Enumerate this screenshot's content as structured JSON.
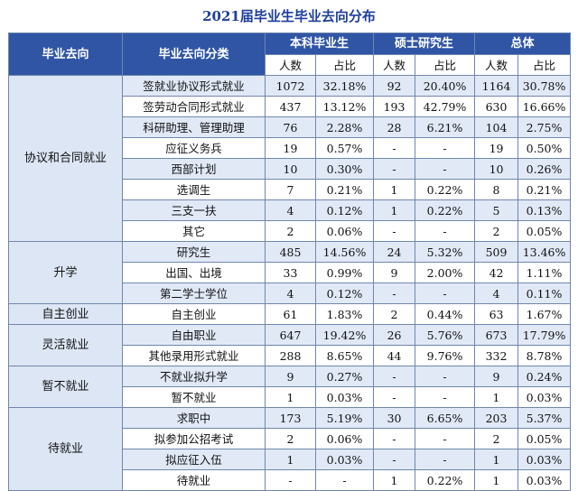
{
  "title": "2021届毕业生毕业去向分布",
  "headers": {
    "main": "毕业去向",
    "sub": "毕业去向分类",
    "groups": [
      "本科毕业生",
      "硕士研究生",
      "总体"
    ],
    "count": "人数",
    "ratio": "占比"
  },
  "groups": [
    {
      "name": "协议和合同就业",
      "rows": [
        {
          "cat": "签就业协议形式就业",
          "v": [
            "1072",
            "32.18%",
            "92",
            "20.40%",
            "1164",
            "30.78%"
          ]
        },
        {
          "cat": "签劳动合同形式就业",
          "v": [
            "437",
            "13.12%",
            "193",
            "42.79%",
            "630",
            "16.66%"
          ]
        },
        {
          "cat": "科研助理、管理助理",
          "v": [
            "76",
            "2.28%",
            "28",
            "6.21%",
            "104",
            "2.75%"
          ]
        },
        {
          "cat": "应征义务兵",
          "v": [
            "19",
            "0.57%",
            "-",
            "-",
            "19",
            "0.50%"
          ]
        },
        {
          "cat": "西部计划",
          "v": [
            "10",
            "0.30%",
            "-",
            "-",
            "10",
            "0.26%"
          ]
        },
        {
          "cat": "选调生",
          "v": [
            "7",
            "0.21%",
            "1",
            "0.22%",
            "8",
            "0.21%"
          ]
        },
        {
          "cat": "三支一扶",
          "v": [
            "4",
            "0.12%",
            "1",
            "0.22%",
            "5",
            "0.13%"
          ]
        },
        {
          "cat": "其它",
          "v": [
            "2",
            "0.06%",
            "-",
            "-",
            "2",
            "0.05%"
          ]
        }
      ]
    },
    {
      "name": "升学",
      "rows": [
        {
          "cat": "研究生",
          "v": [
            "485",
            "14.56%",
            "24",
            "5.32%",
            "509",
            "13.46%"
          ]
        },
        {
          "cat": "出国、出境",
          "v": [
            "33",
            "0.99%",
            "9",
            "2.00%",
            "42",
            "1.11%"
          ]
        },
        {
          "cat": "第二学士学位",
          "v": [
            "4",
            "0.12%",
            "-",
            "-",
            "4",
            "0.11%"
          ]
        }
      ]
    },
    {
      "name": "自主创业",
      "rows": [
        {
          "cat": "自主创业",
          "v": [
            "61",
            "1.83%",
            "2",
            "0.44%",
            "63",
            "1.67%"
          ]
        }
      ]
    },
    {
      "name": "灵活就业",
      "rows": [
        {
          "cat": "自由职业",
          "v": [
            "647",
            "19.42%",
            "26",
            "5.76%",
            "673",
            "17.79%"
          ]
        },
        {
          "cat": "其他录用形式就业",
          "v": [
            "288",
            "8.65%",
            "44",
            "9.76%",
            "332",
            "8.78%"
          ]
        }
      ]
    },
    {
      "name": "暂不就业",
      "rows": [
        {
          "cat": "不就业拟升学",
          "v": [
            "9",
            "0.27%",
            "-",
            "-",
            "9",
            "0.24%"
          ]
        },
        {
          "cat": "暂不就业",
          "v": [
            "1",
            "0.03%",
            "-",
            "-",
            "1",
            "0.03%"
          ]
        }
      ]
    },
    {
      "name": "待就业",
      "rows": [
        {
          "cat": "求职中",
          "v": [
            "173",
            "5.19%",
            "30",
            "6.65%",
            "203",
            "5.37%"
          ]
        },
        {
          "cat": "拟参加公招考试",
          "v": [
            "2",
            "0.06%",
            "-",
            "-",
            "2",
            "0.05%"
          ]
        },
        {
          "cat": "拟应征入伍",
          "v": [
            "1",
            "0.03%",
            "-",
            "-",
            "1",
            "0.03%"
          ]
        },
        {
          "cat": "待就业",
          "v": [
            "-",
            "-",
            "1",
            "0.22%",
            "1",
            "0.03%"
          ]
        }
      ]
    }
  ]
}
